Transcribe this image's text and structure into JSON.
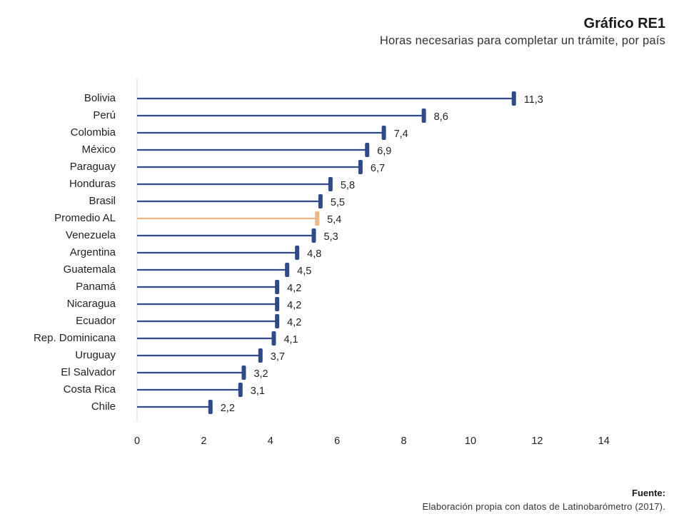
{
  "header": {
    "title": "Gráfico RE1",
    "subtitle": "Horas necesarias para completar un trámite, por país"
  },
  "source": {
    "label": "Fuente:",
    "text": "Elaboración propia con datos de Latinobarómetro (2017)."
  },
  "colors": {
    "bar": "#2e4a8b",
    "highlight": "#f2b77e",
    "axis": "#d9d9d9",
    "text": "#222222"
  },
  "chart_data": {
    "type": "bar",
    "orientation": "horizontal",
    "style": "lollipop",
    "title": "Gráfico RE1",
    "subtitle": "Horas necesarias para completar un trámite, por país",
    "categories": [
      "Bolivia",
      "Perú",
      "Colombia",
      "México",
      "Paraguay",
      "Honduras",
      "Brasil",
      "Promedio AL",
      "Venezuela",
      "Argentina",
      "Guatemala",
      "Panamá",
      "Nicaragua",
      "Ecuador",
      "Rep. Dominicana",
      "Uruguay",
      "El Salvador",
      "Costa Rica",
      "Chile"
    ],
    "values": [
      11.3,
      8.6,
      7.4,
      6.9,
      6.7,
      5.8,
      5.5,
      5.4,
      5.3,
      4.8,
      4.5,
      4.2,
      4.2,
      4.2,
      4.1,
      3.7,
      3.2,
      3.1,
      2.2
    ],
    "value_labels": [
      "11,3",
      "8,6",
      "7,4",
      "6,9",
      "6,7",
      "5,8",
      "5,5",
      "5,4",
      "5,3",
      "4,8",
      "4,5",
      "4,2",
      "4,2",
      "4,2",
      "4,1",
      "3,7",
      "3,2",
      "3,1",
      "2,2"
    ],
    "highlight_category": "Promedio AL",
    "xlim": [
      0,
      14
    ],
    "xticks": [
      0,
      2,
      4,
      6,
      8,
      10,
      12,
      14
    ],
    "xtick_labels": [
      "0",
      "2",
      "4",
      "6",
      "8",
      "10",
      "12",
      "14"
    ],
    "xlabel": "",
    "ylabel": "",
    "grid": false,
    "legend": false
  }
}
